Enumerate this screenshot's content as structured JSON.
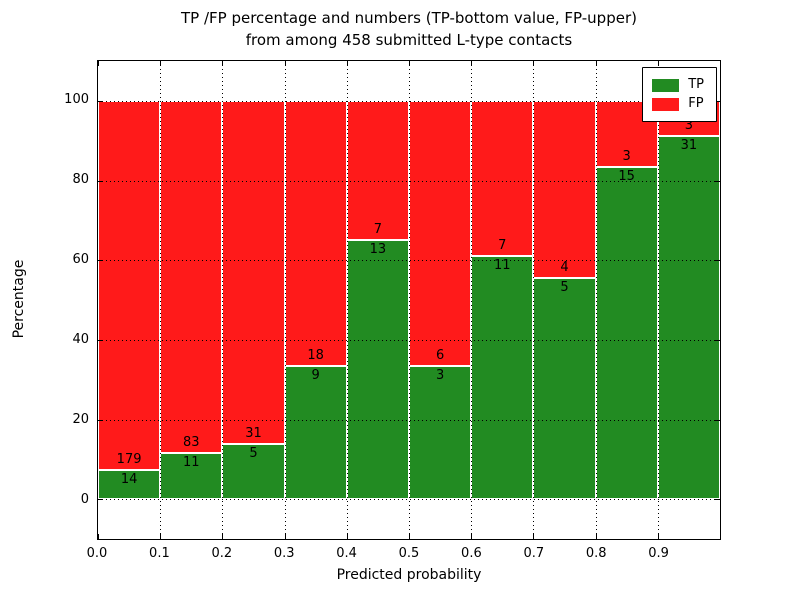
{
  "chart_data": {
    "type": "bar",
    "stacked": true,
    "normalized_to_percent": true,
    "title_line1": "TP /FP percentage and numbers (TP-bottom value, FP-upper)",
    "title_line2": "from among 458 submitted L-type contacts",
    "xlabel": "Predicted probability",
    "ylabel": "Percentage",
    "total_contacts": 458,
    "x_tick_labels": [
      "0.0",
      "0.1",
      "0.2",
      "0.3",
      "0.4",
      "0.5",
      "0.6",
      "0.7",
      "0.8",
      "0.9"
    ],
    "y_ticks": [
      0,
      20,
      40,
      60,
      80,
      100
    ],
    "xlim": [
      0.0,
      1.0
    ],
    "ylim": [
      -10,
      110
    ],
    "bin_width": 0.1,
    "grid": "dotted",
    "categories": [
      "0.0-0.1",
      "0.1-0.2",
      "0.2-0.3",
      "0.3-0.4",
      "0.4-0.5",
      "0.5-0.6",
      "0.6-0.7",
      "0.7-0.8",
      "0.8-0.9",
      "0.9-1.0"
    ],
    "series": [
      {
        "name": "TP",
        "color": "#228B22",
        "values": [
          14,
          11,
          5,
          9,
          13,
          3,
          11,
          5,
          15,
          31
        ]
      },
      {
        "name": "FP",
        "color": "#FF1A1A",
        "values": [
          179,
          83,
          31,
          18,
          7,
          6,
          7,
          4,
          3,
          3
        ]
      }
    ],
    "tp_percent": [
      7.25,
      11.7,
      13.89,
      33.33,
      65.0,
      33.33,
      61.11,
      55.56,
      83.33,
      91.18
    ],
    "legend": {
      "position": "upper right",
      "entries": [
        {
          "label": "TP",
          "color": "#228B22"
        },
        {
          "label": "FP",
          "color": "#FF1A1A"
        }
      ]
    }
  }
}
